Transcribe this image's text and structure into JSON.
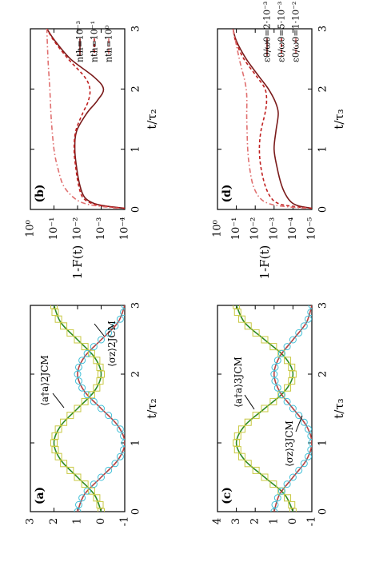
{
  "chart_data": [
    {
      "panel": "(a)",
      "type": "line",
      "xlabel": "t/τ₂",
      "ylabel": "",
      "xlim": [
        0,
        3
      ],
      "ylim": [
        -1,
        3
      ],
      "x_ticks": [
        "0",
        "1",
        "2",
        "3"
      ],
      "y_ticks": [
        "-1",
        "0",
        "1",
        "2",
        "3"
      ],
      "annotations": [
        "⟨a†a⟩2JCM",
        "⟨σz⟩2JCM"
      ],
      "series": [
        {
          "kind": "curve",
          "color": "#2e8b22",
          "x": [
            0,
            0.25,
            0.5,
            0.75,
            1,
            1.25,
            1.5,
            1.75,
            2,
            2.25,
            2.5,
            2.75,
            3
          ],
          "y": [
            0,
            0.29,
            1,
            1.71,
            2,
            1.71,
            1,
            0.29,
            0,
            0.29,
            1,
            1.71,
            2
          ]
        },
        {
          "kind": "curve",
          "color": "#b84040",
          "x": [
            0,
            0.25,
            0.5,
            0.75,
            1,
            1.25,
            1.5,
            1.75,
            2,
            2.25,
            2.5,
            2.75,
            3
          ],
          "y": [
            1,
            0.71,
            0,
            -0.71,
            -1,
            -0.71,
            0,
            0.71,
            1,
            0.71,
            0,
            -0.71,
            -1
          ]
        },
        {
          "kind": "squares",
          "color": "#c8c840",
          "x": [
            0,
            0.1,
            0.2,
            0.3,
            0.4,
            0.5,
            0.6,
            0.7,
            0.8,
            0.9,
            1,
            1.1,
            1.2,
            1.3,
            1.4,
            1.5,
            1.6,
            1.7,
            1.8,
            1.9,
            2,
            2.1,
            2.2,
            2.3,
            2.4,
            2.5,
            2.6,
            2.7,
            2.8,
            2.9,
            3
          ],
          "y": [
            0,
            0.05,
            0.19,
            0.41,
            0.69,
            1,
            1.31,
            1.59,
            1.81,
            1.95,
            2,
            1.95,
            1.81,
            1.59,
            1.31,
            1,
            0.69,
            0.41,
            0.19,
            0.05,
            0,
            0.05,
            0.19,
            0.41,
            0.69,
            1,
            1.31,
            1.59,
            1.81,
            1.95,
            2
          ]
        },
        {
          "kind": "circles",
          "color": "#40c0d8",
          "x": [
            0,
            0.1,
            0.2,
            0.3,
            0.4,
            0.5,
            0.6,
            0.7,
            0.8,
            0.9,
            1,
            1.1,
            1.2,
            1.3,
            1.4,
            1.5,
            1.6,
            1.7,
            1.8,
            1.9,
            2,
            2.1,
            2.2,
            2.3,
            2.4,
            2.5,
            2.6,
            2.7,
            2.8,
            2.9,
            3
          ],
          "y": [
            1,
            0.95,
            0.81,
            0.59,
            0.31,
            0,
            -0.31,
            -0.59,
            -0.81,
            -0.95,
            -1,
            -0.95,
            -0.81,
            -0.59,
            -0.31,
            0,
            0.31,
            0.59,
            0.81,
            0.95,
            1,
            0.95,
            0.81,
            0.59,
            0.31,
            0,
            -0.31,
            -0.59,
            -0.81,
            -0.95,
            -1
          ]
        }
      ]
    },
    {
      "panel": "(b)",
      "type": "line",
      "xlabel": "t/τ₂",
      "ylabel": "1-F(t)",
      "xlim": [
        0,
        3
      ],
      "ylim": [
        0.0001,
        1
      ],
      "yscale": "log",
      "x_ticks": [
        "0",
        "1",
        "2",
        "3"
      ],
      "y_ticks": [
        "10⁻⁴",
        "10⁻³",
        "10⁻²",
        "10⁻¹",
        "10⁰"
      ],
      "legend": "bottom-left",
      "series": [
        {
          "name": "nth=10⁻³",
          "style": "solid",
          "color": "#7a1a1a",
          "x": [
            0.02,
            0.05,
            0.1,
            0.2,
            0.4,
            0.7,
            1,
            1.3,
            1.6,
            1.8,
            2,
            2.2,
            2.5,
            2.8,
            3
          ],
          "y": [
            0.0001,
            0.0005,
            0.002,
            0.005,
            0.008,
            0.011,
            0.013,
            0.011,
            0.004,
            0.0015,
            0.0008,
            0.002,
            0.02,
            0.09,
            0.2
          ]
        },
        {
          "name": "nth=10⁻¹",
          "style": "dashed",
          "color": "#c02020",
          "x": [
            0.02,
            0.05,
            0.1,
            0.2,
            0.4,
            0.7,
            1,
            1.3,
            1.6,
            1.8,
            2,
            2.2,
            2.5,
            2.8,
            3
          ],
          "y": [
            0.0001,
            0.0006,
            0.0025,
            0.006,
            0.009,
            0.012,
            0.014,
            0.012,
            0.006,
            0.0035,
            0.003,
            0.005,
            0.025,
            0.1,
            0.2
          ]
        },
        {
          "name": "nth=10⁰",
          "style": "dashdot",
          "color": "#e07070",
          "x": [
            0.02,
            0.05,
            0.1,
            0.2,
            0.4,
            0.7,
            1,
            1.5,
            2,
            2.5,
            3
          ],
          "y": [
            0.0002,
            0.001,
            0.005,
            0.015,
            0.04,
            0.07,
            0.1,
            0.13,
            0.15,
            0.18,
            0.2
          ]
        }
      ]
    },
    {
      "panel": "(c)",
      "type": "line",
      "xlabel": "t/τ₃",
      "ylabel": "",
      "xlim": [
        0,
        3
      ],
      "ylim": [
        -1,
        4
      ],
      "x_ticks": [
        "0",
        "1",
        "2",
        "3"
      ],
      "y_ticks": [
        "-1",
        "0",
        "1",
        "2",
        "3",
        "4"
      ],
      "annotations": [
        "⟨a†a⟩3JCM",
        "⟨σz⟩3JCM"
      ],
      "series": [
        {
          "kind": "curve",
          "color": "#2e8b22",
          "x": [
            0,
            0.25,
            0.5,
            0.75,
            1,
            1.25,
            1.5,
            1.75,
            2,
            2.25,
            2.5,
            2.75,
            3
          ],
          "y": [
            0,
            0.44,
            1.5,
            2.56,
            3,
            2.56,
            1.5,
            0.44,
            0,
            0.44,
            1.5,
            2.56,
            3
          ]
        },
        {
          "kind": "curve",
          "color": "#b84040",
          "x": [
            0,
            0.25,
            0.5,
            0.75,
            1,
            1.25,
            1.5,
            1.75,
            2,
            2.25,
            2.5,
            2.75,
            3
          ],
          "y": [
            1,
            0.71,
            0,
            -0.71,
            -1,
            -0.71,
            0,
            0.71,
            1,
            0.71,
            0,
            -0.71,
            -1
          ]
        },
        {
          "kind": "squares",
          "color": "#c8c840",
          "x": [
            0,
            0.1,
            0.2,
            0.3,
            0.4,
            0.5,
            0.6,
            0.7,
            0.8,
            0.9,
            1,
            1.1,
            1.2,
            1.3,
            1.4,
            1.5,
            1.6,
            1.7,
            1.8,
            1.9,
            2,
            2.1,
            2.2,
            2.3,
            2.4,
            2.5,
            2.6,
            2.7,
            2.8,
            2.9,
            3
          ],
          "y": [
            0,
            0.07,
            0.29,
            0.62,
            1.04,
            1.5,
            1.96,
            2.38,
            2.71,
            2.93,
            3,
            2.93,
            2.71,
            2.38,
            1.96,
            1.5,
            1.04,
            0.62,
            0.29,
            0.07,
            0,
            0.07,
            0.29,
            0.62,
            1.04,
            1.5,
            1.96,
            2.38,
            2.71,
            2.93,
            3
          ]
        },
        {
          "kind": "circles",
          "color": "#40c0d8",
          "x": [
            0,
            0.1,
            0.2,
            0.3,
            0.4,
            0.5,
            0.6,
            0.7,
            0.8,
            0.9,
            1,
            1.1,
            1.2,
            1.3,
            1.4,
            1.5,
            1.6,
            1.7,
            1.8,
            1.9,
            2,
            2.1,
            2.2,
            2.3,
            2.4,
            2.5,
            2.6,
            2.7,
            2.8,
            2.9,
            3
          ],
          "y": [
            1,
            0.95,
            0.81,
            0.59,
            0.31,
            0,
            -0.31,
            -0.59,
            -0.81,
            -0.95,
            -1,
            -0.95,
            -0.81,
            -0.59,
            -0.31,
            0,
            0.31,
            0.59,
            0.81,
            0.95,
            1,
            0.95,
            0.81,
            0.59,
            0.31,
            0,
            -0.31,
            -0.59,
            -0.81,
            -0.95,
            -1
          ]
        }
      ]
    },
    {
      "panel": "(d)",
      "type": "line",
      "xlabel": "t/τ₃",
      "ylabel": "1-F(t)",
      "xlim": [
        0,
        3
      ],
      "ylim": [
        1e-05,
        1
      ],
      "yscale": "log",
      "x_ticks": [
        "0",
        "1",
        "2",
        "3"
      ],
      "y_ticks": [
        "10⁻⁵",
        "10⁻⁴",
        "10⁻³",
        "10⁻²",
        "10⁻¹",
        "10⁰"
      ],
      "legend": "bottom-right",
      "series": [
        {
          "name": "ε0/ω0=2·10⁻³",
          "style": "solid",
          "color": "#7a1a1a",
          "x": [
            0.02,
            0.05,
            0.1,
            0.2,
            0.4,
            0.7,
            1,
            1.3,
            1.6,
            1.8,
            2,
            2.2,
            2.5,
            2.8,
            3
          ],
          "y": [
            1e-05,
            4e-05,
            0.0001,
            0.0002,
            0.0004,
            0.0007,
            0.001,
            0.0008,
            0.0006,
            0.0009,
            0.002,
            0.006,
            0.03,
            0.1,
            0.15
          ]
        },
        {
          "name": "ε0/ω0=5·10⁻³",
          "style": "dashed",
          "color": "#c02020",
          "x": [
            0.02,
            0.05,
            0.1,
            0.2,
            0.4,
            0.7,
            1,
            1.3,
            1.6,
            1.8,
            2,
            2.2,
            2.5,
            2.8,
            3
          ],
          "y": [
            1e-05,
            0.0001,
            0.0006,
            0.0015,
            0.003,
            0.005,
            0.006,
            0.005,
            0.003,
            0.0025,
            0.003,
            0.008,
            0.04,
            0.11,
            0.15
          ]
        },
        {
          "name": "ε0/ω0=1·10⁻²",
          "style": "dashdot",
          "color": "#e07070",
          "x": [
            0.02,
            0.05,
            0.1,
            0.2,
            0.4,
            0.7,
            1,
            1.5,
            2,
            2.5,
            3
          ],
          "y": [
            2e-05,
            0.0003,
            0.002,
            0.006,
            0.013,
            0.02,
            0.025,
            0.028,
            0.03,
            0.07,
            0.15
          ]
        }
      ]
    }
  ]
}
